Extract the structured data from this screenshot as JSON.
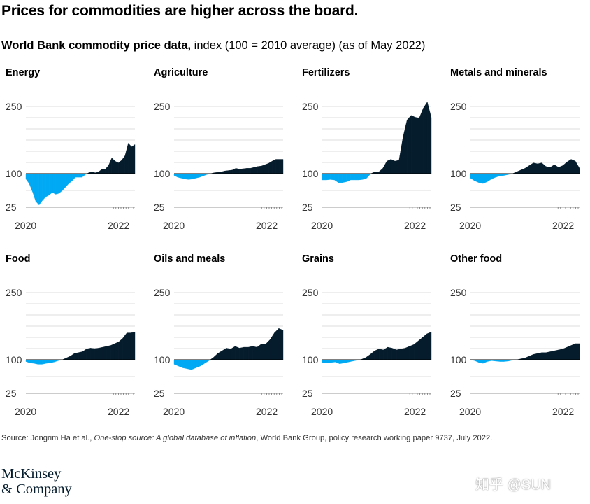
{
  "title": "Prices for commodities are higher across the board.",
  "subtitle": {
    "bold": "World Bank commodity price data,",
    "rest": " index (100 = 2010 average) (as of May 2022)"
  },
  "colors": {
    "above": "#051c2c",
    "below": "#00a9f4",
    "grid": "#d0d0d0",
    "text": "#333333"
  },
  "source": {
    "pre": "Source: Jongrim Ha et al., ",
    "italic": "One-stop source: A global database of inflation",
    "post": ", World Bank Group, policy research working paper 9737, July 2022."
  },
  "logo": {
    "line1": "McKinsey",
    "line2": "& Company"
  },
  "watermark": "知乎 @SUN",
  "chart_data": [
    {
      "type": "area",
      "title": "Energy",
      "baseline": 100,
      "ylim": [
        25,
        250
      ],
      "yticks": [
        250,
        100,
        25
      ],
      "xticks": [
        "2020",
        "2022"
      ],
      "values": [
        88,
        78,
        60,
        38,
        30,
        40,
        48,
        52,
        58,
        54,
        56,
        62,
        70,
        78,
        84,
        92,
        92,
        92,
        98,
        102,
        104,
        102,
        104,
        110,
        110,
        118,
        135,
        128,
        124,
        130,
        140,
        168,
        160,
        165
      ]
    },
    {
      "type": "area",
      "title": "Agriculture",
      "baseline": 100,
      "ylim": [
        25,
        250
      ],
      "yticks": [
        250,
        100,
        25
      ],
      "xticks": [
        "2020",
        "2022"
      ],
      "values": [
        96,
        92,
        90,
        88,
        87,
        88,
        90,
        92,
        95,
        98,
        100,
        102,
        103,
        104,
        106,
        107,
        108,
        112,
        110,
        111,
        112,
        112,
        114,
        116,
        117,
        120,
        123,
        128,
        132,
        132,
        132
      ]
    },
    {
      "type": "area",
      "title": "Fertilizers",
      "baseline": 100,
      "ylim": [
        25,
        250
      ],
      "yticks": [
        250,
        100,
        25
      ],
      "xticks": [
        "2020",
        "2022"
      ],
      "values": [
        86,
        86,
        87,
        86,
        80,
        80,
        82,
        86,
        86,
        86,
        87,
        90,
        100,
        104,
        104,
        112,
        128,
        132,
        128,
        130,
        182,
        220,
        230,
        226,
        224,
        246,
        260,
        225
      ]
    },
    {
      "type": "area",
      "title": "Metals and minerals",
      "baseline": 100,
      "ylim": [
        25,
        250
      ],
      "yticks": [
        250,
        100,
        25
      ],
      "xticks": [
        "2020",
        "2022"
      ],
      "values": [
        90,
        84,
        80,
        78,
        82,
        88,
        92,
        95,
        96,
        98,
        100,
        104,
        108,
        112,
        118,
        124,
        122,
        124,
        116,
        114,
        120,
        114,
        118,
        126,
        132,
        128,
        112
      ]
    },
    {
      "type": "area",
      "title": "Food",
      "baseline": 100,
      "ylim": [
        25,
        250
      ],
      "yticks": [
        250,
        100,
        25
      ],
      "xticks": [
        "2020",
        "2022"
      ],
      "values": [
        96,
        93,
        92,
        90,
        90,
        92,
        93,
        95,
        98,
        100,
        104,
        108,
        114,
        116,
        118,
        124,
        126,
        125,
        126,
        128,
        130,
        132,
        136,
        140,
        148,
        160,
        160,
        162
      ]
    },
    {
      "type": "area",
      "title": "Oils and meals",
      "baseline": 100,
      "ylim": [
        25,
        250
      ],
      "yticks": [
        250,
        100,
        25
      ],
      "xticks": [
        "2020",
        "2022"
      ],
      "values": [
        90,
        86,
        82,
        80,
        78,
        82,
        86,
        92,
        98,
        105,
        114,
        120,
        126,
        124,
        130,
        126,
        128,
        128,
        130,
        128,
        135,
        135,
        145,
        160,
        170,
        166
      ]
    },
    {
      "type": "area",
      "title": "Grains",
      "baseline": 100,
      "ylim": [
        25,
        250
      ],
      "yticks": [
        250,
        100,
        25
      ],
      "xticks": [
        "2020",
        "2022"
      ],
      "values": [
        94,
        93,
        94,
        95,
        91,
        93,
        95,
        97,
        99,
        101,
        105,
        112,
        120,
        124,
        122,
        128,
        126,
        122,
        124,
        126,
        130,
        134,
        142,
        150,
        158,
        162
      ]
    },
    {
      "type": "area",
      "title": "Other food",
      "baseline": 100,
      "ylim": [
        25,
        250
      ],
      "yticks": [
        250,
        100,
        25
      ],
      "xticks": [
        "2020",
        "2022"
      ],
      "values": [
        100,
        98,
        94,
        92,
        96,
        98,
        97,
        96,
        96,
        97,
        99,
        100,
        102,
        104,
        108,
        112,
        114,
        116,
        116,
        118,
        120,
        122,
        124,
        128,
        132,
        136,
        136
      ]
    }
  ]
}
